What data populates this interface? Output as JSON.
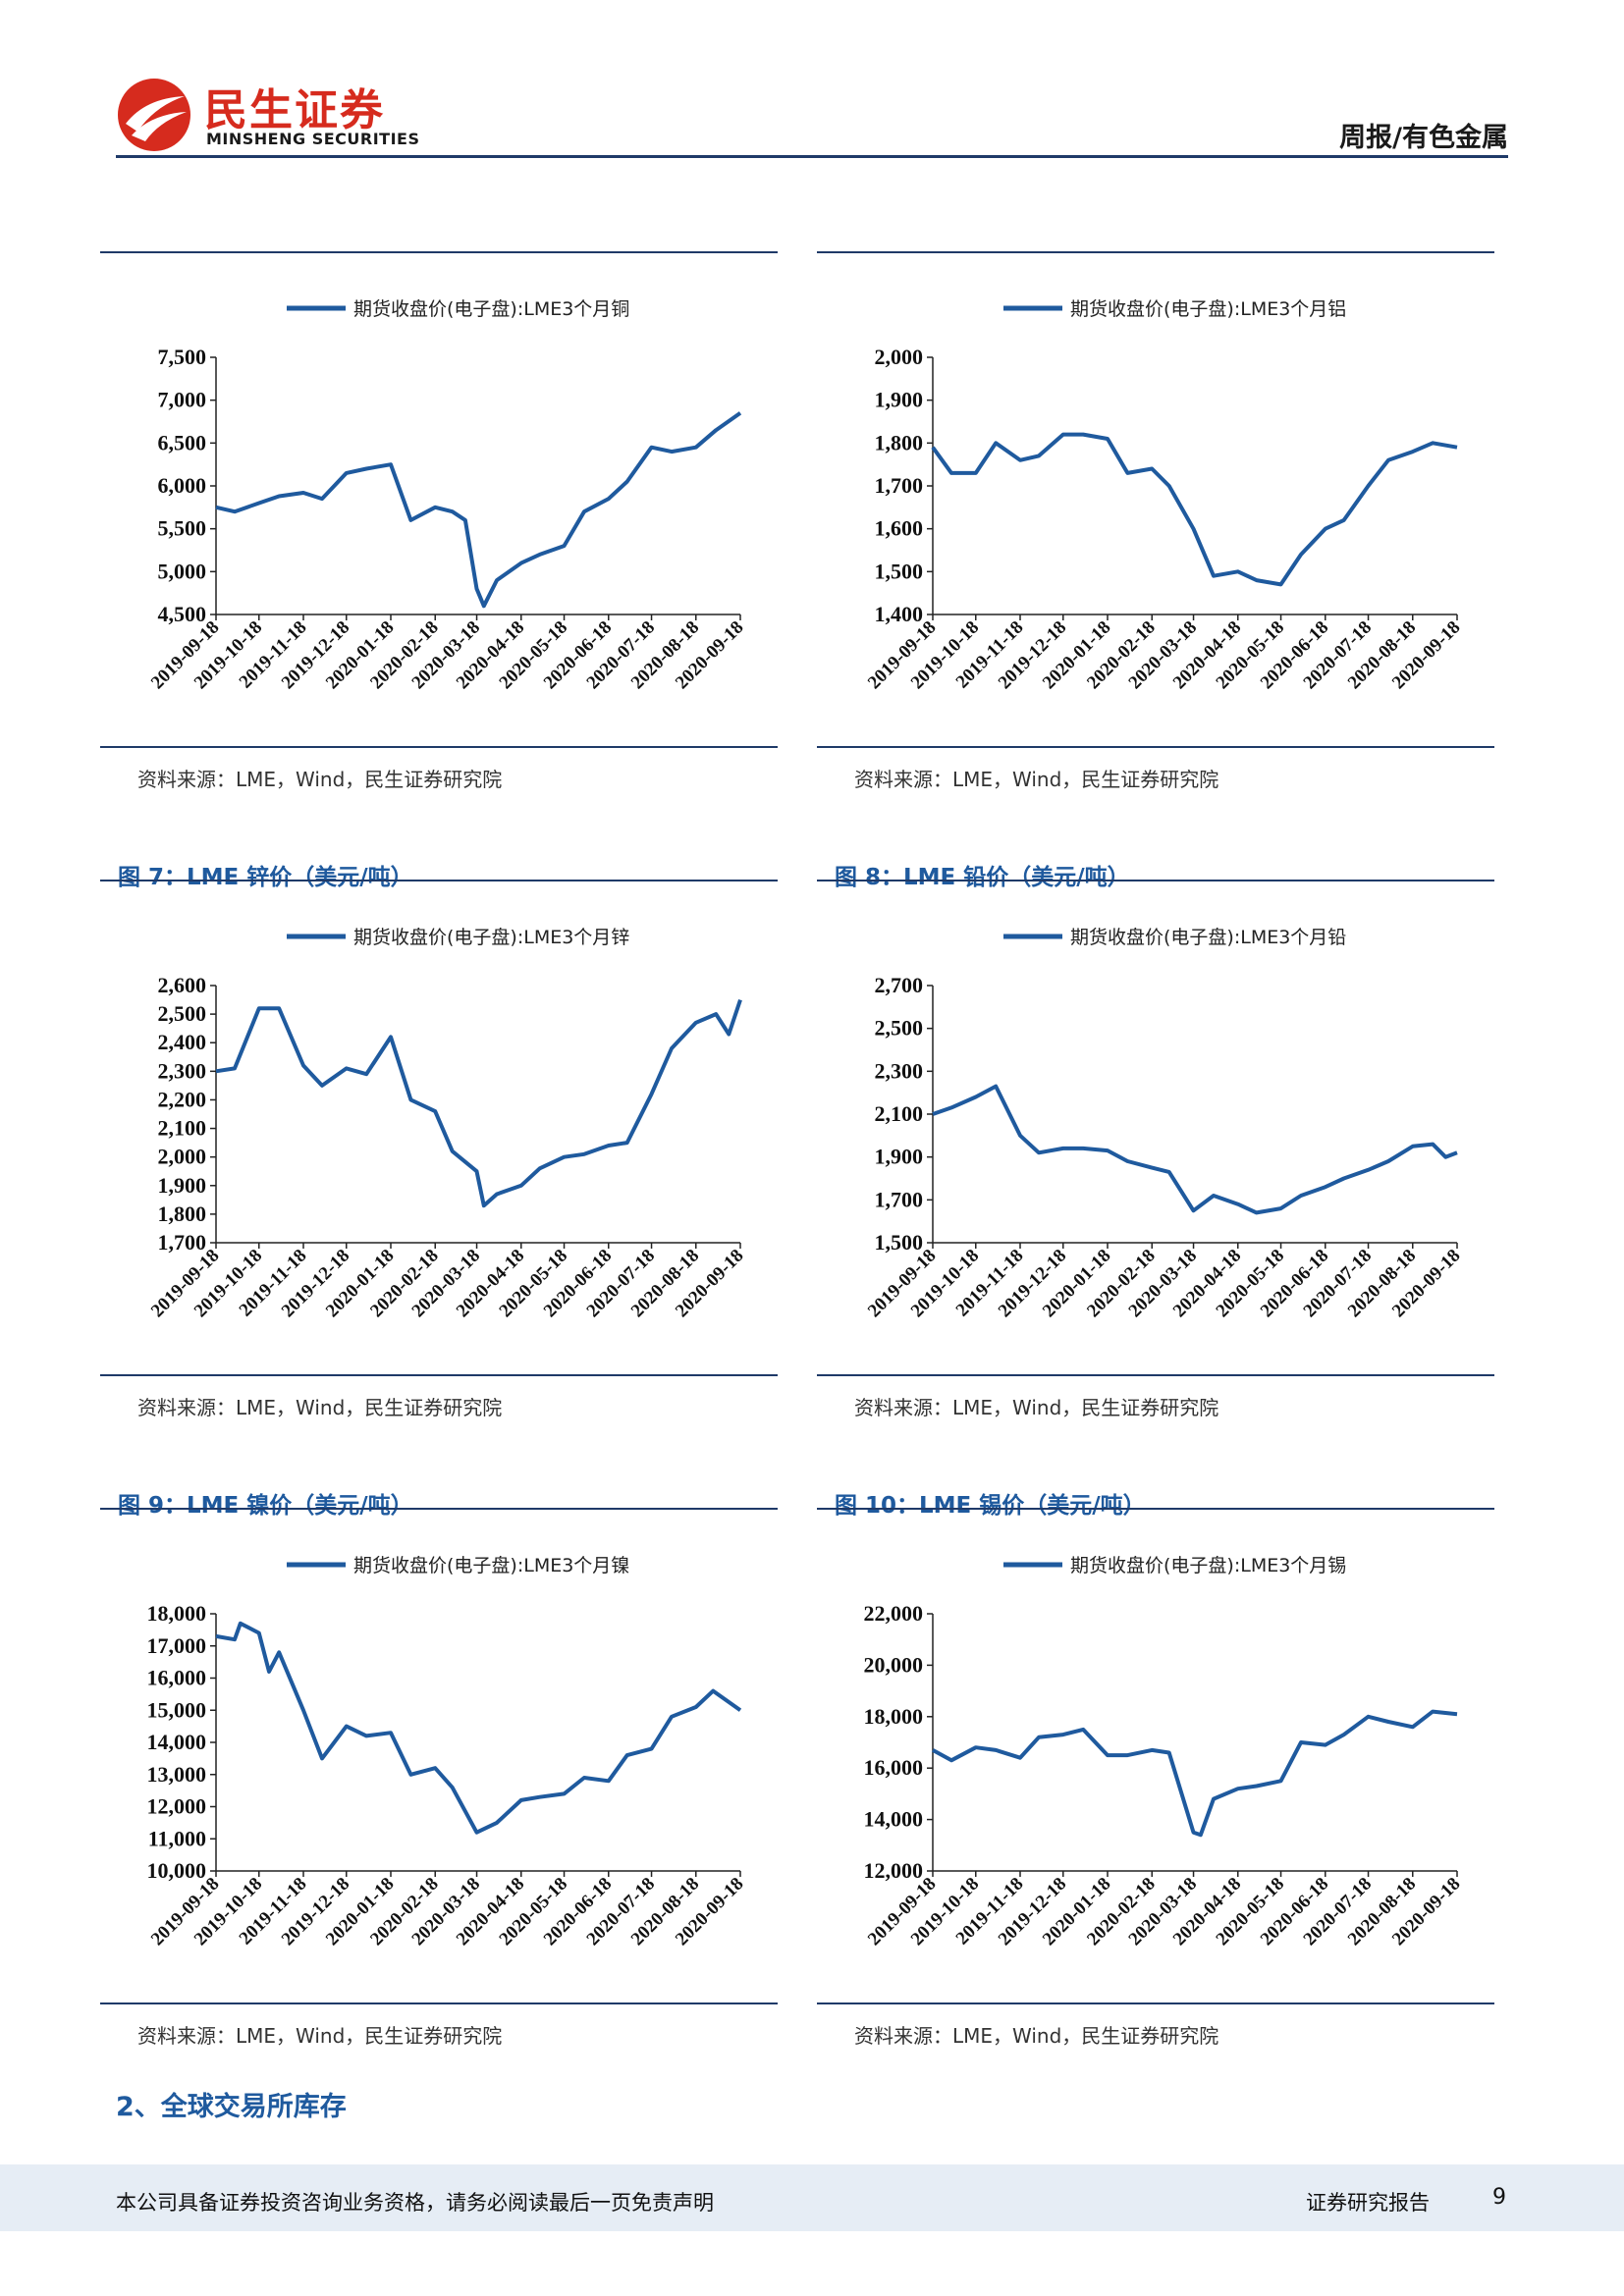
{
  "header": {
    "logo_cn": "民生证券",
    "logo_en": "MINSHENG SECURITIES",
    "right_label": "周报/有色金属",
    "brand_color": "#d62b1e",
    "accent_color": "#1f3a68"
  },
  "source_note": "资料来源：LME，Wind，民生证券研究院",
  "section_heading": "2、全球交易所库存",
  "footer": {
    "disclaimer": "本公司具备证券投资咨询业务资格，请务必阅读最后一页免责声明",
    "report_type": "证券研究报告",
    "page_number": "9"
  },
  "figures": [
    {
      "title": ""
    },
    {
      "title": ""
    },
    {
      "title": "图 7：LME 锌价（美元/吨）"
    },
    {
      "title": "图 8：LME 铅价（美元/吨）"
    },
    {
      "title": "图 9：LME 镍价（美元/吨）"
    },
    {
      "title": "图 10：LME 锡价（美元/吨）"
    }
  ],
  "chart_data": [
    {
      "type": "line",
      "series": [
        {
          "name": "期货收盘价(电子盘):LME3个月铜",
          "color": "#1f5a9e",
          "x": [
            "2019-09-18",
            "2019-10-01",
            "2019-10-18",
            "2019-11-01",
            "2019-11-18",
            "2019-12-01",
            "2019-12-18",
            "2020-01-01",
            "2020-01-18",
            "2020-02-01",
            "2020-02-18",
            "2020-03-01",
            "2020-03-10",
            "2020-03-18",
            "2020-03-23",
            "2020-04-01",
            "2020-04-18",
            "2020-05-01",
            "2020-05-18",
            "2020-06-01",
            "2020-06-18",
            "2020-07-01",
            "2020-07-18",
            "2020-08-01",
            "2020-08-18",
            "2020-09-01",
            "2020-09-18"
          ],
          "values": [
            5750,
            5700,
            5800,
            5880,
            5920,
            5850,
            6150,
            6200,
            6250,
            5600,
            5750,
            5700,
            5600,
            4800,
            4600,
            4900,
            5100,
            5200,
            5300,
            5700,
            5850,
            6050,
            6450,
            6400,
            6450,
            6650,
            6850
          ]
        }
      ],
      "ylim": [
        4500,
        7500
      ],
      "yticks": [
        "4,500",
        "5,000",
        "5,500",
        "6,000",
        "6,500",
        "7,000",
        "7,500"
      ],
      "xticks": [
        "2019-09-18",
        "2019-10-18",
        "2019-11-18",
        "2019-12-18",
        "2020-01-18",
        "2020-02-18",
        "2020-03-18",
        "2020-04-18",
        "2020-05-18",
        "2020-06-18",
        "2020-07-18",
        "2020-08-18",
        "2020-09-18"
      ],
      "legend_position": "top-center",
      "grid": false
    },
    {
      "type": "line",
      "series": [
        {
          "name": "期货收盘价(电子盘):LME3个月铝",
          "color": "#1f5a9e",
          "x": [
            "2019-09-18",
            "2019-10-01",
            "2019-10-18",
            "2019-11-01",
            "2019-11-18",
            "2019-12-01",
            "2019-12-18",
            "2020-01-01",
            "2020-01-18",
            "2020-02-01",
            "2020-02-18",
            "2020-03-01",
            "2020-03-18",
            "2020-04-01",
            "2020-04-18",
            "2020-05-01",
            "2020-05-18",
            "2020-06-01",
            "2020-06-18",
            "2020-07-01",
            "2020-07-18",
            "2020-08-01",
            "2020-08-18",
            "2020-09-01",
            "2020-09-18"
          ],
          "values": [
            1790,
            1730,
            1730,
            1800,
            1760,
            1770,
            1820,
            1820,
            1810,
            1730,
            1740,
            1700,
            1600,
            1490,
            1500,
            1480,
            1470,
            1540,
            1600,
            1620,
            1700,
            1760,
            1780,
            1800,
            1790
          ]
        }
      ],
      "ylim": [
        1400,
        2000
      ],
      "yticks": [
        "1,400",
        "1,500",
        "1,600",
        "1,700",
        "1,800",
        "1,900",
        "2,000"
      ],
      "xticks": [
        "2019-09-18",
        "2019-10-18",
        "2019-11-18",
        "2019-12-18",
        "2020-01-18",
        "2020-02-18",
        "2020-03-18",
        "2020-04-18",
        "2020-05-18",
        "2020-06-18",
        "2020-07-18",
        "2020-08-18",
        "2020-09-18"
      ],
      "legend_position": "top-center",
      "grid": false
    },
    {
      "type": "line",
      "series": [
        {
          "name": "期货收盘价(电子盘):LME3个月锌",
          "color": "#1f5a9e",
          "x": [
            "2019-09-18",
            "2019-10-01",
            "2019-10-18",
            "2019-11-01",
            "2019-11-18",
            "2019-12-01",
            "2019-12-18",
            "2020-01-01",
            "2020-01-18",
            "2020-02-01",
            "2020-02-18",
            "2020-03-01",
            "2020-03-18",
            "2020-03-23",
            "2020-04-01",
            "2020-04-18",
            "2020-05-01",
            "2020-05-18",
            "2020-06-01",
            "2020-06-18",
            "2020-07-01",
            "2020-07-18",
            "2020-08-01",
            "2020-08-18",
            "2020-09-01",
            "2020-09-10",
            "2020-09-18"
          ],
          "values": [
            2300,
            2310,
            2520,
            2520,
            2320,
            2250,
            2310,
            2290,
            2420,
            2200,
            2160,
            2020,
            1950,
            1830,
            1870,
            1900,
            1960,
            2000,
            2010,
            2040,
            2050,
            2220,
            2380,
            2470,
            2500,
            2430,
            2550
          ]
        }
      ],
      "ylim": [
        1700,
        2600
      ],
      "yticks": [
        "1,700",
        "1,800",
        "1,900",
        "2,000",
        "2,100",
        "2,200",
        "2,300",
        "2,400",
        "2,500",
        "2,600"
      ],
      "xticks": [
        "2019-09-18",
        "2019-10-18",
        "2019-11-18",
        "2019-12-18",
        "2020-01-18",
        "2020-02-18",
        "2020-03-18",
        "2020-04-18",
        "2020-05-18",
        "2020-06-18",
        "2020-07-18",
        "2020-08-18",
        "2020-09-18"
      ],
      "legend_position": "top-center",
      "grid": false
    },
    {
      "type": "line",
      "series": [
        {
          "name": "期货收盘价(电子盘):LME3个月铅",
          "color": "#1f5a9e",
          "x": [
            "2019-09-18",
            "2019-10-01",
            "2019-10-18",
            "2019-11-01",
            "2019-11-18",
            "2019-12-01",
            "2019-12-18",
            "2020-01-01",
            "2020-01-18",
            "2020-02-01",
            "2020-02-18",
            "2020-03-01",
            "2020-03-18",
            "2020-04-01",
            "2020-04-18",
            "2020-05-01",
            "2020-05-18",
            "2020-06-01",
            "2020-06-18",
            "2020-07-01",
            "2020-07-18",
            "2020-08-01",
            "2020-08-18",
            "2020-09-01",
            "2020-09-10",
            "2020-09-18"
          ],
          "values": [
            2100,
            2130,
            2180,
            2230,
            2000,
            1920,
            1940,
            1940,
            1930,
            1880,
            1850,
            1830,
            1650,
            1720,
            1680,
            1640,
            1660,
            1720,
            1760,
            1800,
            1840,
            1880,
            1950,
            1960,
            1900,
            1920
          ]
        }
      ],
      "ylim": [
        1500,
        2700
      ],
      "yticks": [
        "1,500",
        "1,700",
        "1,900",
        "2,100",
        "2,300",
        "2,500",
        "2,700"
      ],
      "xticks": [
        "2019-09-18",
        "2019-10-18",
        "2019-11-18",
        "2019-12-18",
        "2020-01-18",
        "2020-02-18",
        "2020-03-18",
        "2020-04-18",
        "2020-05-18",
        "2020-06-18",
        "2020-07-18",
        "2020-08-18",
        "2020-09-18"
      ],
      "legend_position": "top-center",
      "grid": false
    },
    {
      "type": "line",
      "series": [
        {
          "name": "期货收盘价(电子盘):LME3个月镍",
          "color": "#1f5a9e",
          "x": [
            "2019-09-18",
            "2019-10-01",
            "2019-10-05",
            "2019-10-18",
            "2019-10-25",
            "2019-11-01",
            "2019-11-18",
            "2019-12-01",
            "2019-12-18",
            "2020-01-01",
            "2020-01-18",
            "2020-02-01",
            "2020-02-18",
            "2020-03-01",
            "2020-03-18",
            "2020-04-01",
            "2020-04-18",
            "2020-05-01",
            "2020-05-18",
            "2020-06-01",
            "2020-06-18",
            "2020-07-01",
            "2020-07-18",
            "2020-08-01",
            "2020-08-18",
            "2020-08-30",
            "2020-09-18"
          ],
          "values": [
            17300,
            17200,
            17700,
            17400,
            16200,
            16800,
            15000,
            13500,
            14500,
            14200,
            14300,
            13000,
            13200,
            12600,
            11200,
            11500,
            12200,
            12300,
            12400,
            12900,
            12800,
            13600,
            13800,
            14800,
            15100,
            15600,
            15000
          ]
        }
      ],
      "ylim": [
        10000,
        18000
      ],
      "yticks": [
        "10,000",
        "11,000",
        "12,000",
        "13,000",
        "14,000",
        "15,000",
        "16,000",
        "17,000",
        "18,000"
      ],
      "xticks": [
        "2019-09-18",
        "2019-10-18",
        "2019-11-18",
        "2019-12-18",
        "2020-01-18",
        "2020-02-18",
        "2020-03-18",
        "2020-04-18",
        "2020-05-18",
        "2020-06-18",
        "2020-07-18",
        "2020-08-18",
        "2020-09-18"
      ],
      "legend_position": "top-center",
      "grid": false
    },
    {
      "type": "line",
      "series": [
        {
          "name": "期货收盘价(电子盘):LME3个月锡",
          "color": "#1f5a9e",
          "x": [
            "2019-09-18",
            "2019-10-01",
            "2019-10-18",
            "2019-11-01",
            "2019-11-18",
            "2019-12-01",
            "2019-12-18",
            "2020-01-01",
            "2020-01-18",
            "2020-02-01",
            "2020-02-18",
            "2020-03-01",
            "2020-03-18",
            "2020-03-23",
            "2020-04-01",
            "2020-04-18",
            "2020-05-01",
            "2020-05-18",
            "2020-06-01",
            "2020-06-18",
            "2020-07-01",
            "2020-07-18",
            "2020-08-01",
            "2020-08-18",
            "2020-09-01",
            "2020-09-18"
          ],
          "values": [
            16700,
            16300,
            16800,
            16700,
            16400,
            17200,
            17300,
            17500,
            16500,
            16500,
            16700,
            16600,
            13500,
            13400,
            14800,
            15200,
            15300,
            15500,
            17000,
            16900,
            17300,
            18000,
            17800,
            17600,
            18200,
            18100
          ]
        }
      ],
      "ylim": [
        12000,
        22000
      ],
      "yticks": [
        "12,000",
        "14,000",
        "16,000",
        "18,000",
        "20,000",
        "22,000"
      ],
      "xticks": [
        "2019-09-18",
        "2019-10-18",
        "2019-11-18",
        "2019-12-18",
        "2020-01-18",
        "2020-02-18",
        "2020-03-18",
        "2020-04-18",
        "2020-05-18",
        "2020-06-18",
        "2020-07-18",
        "2020-08-18",
        "2020-09-18"
      ],
      "legend_position": "top-center",
      "grid": false
    }
  ]
}
